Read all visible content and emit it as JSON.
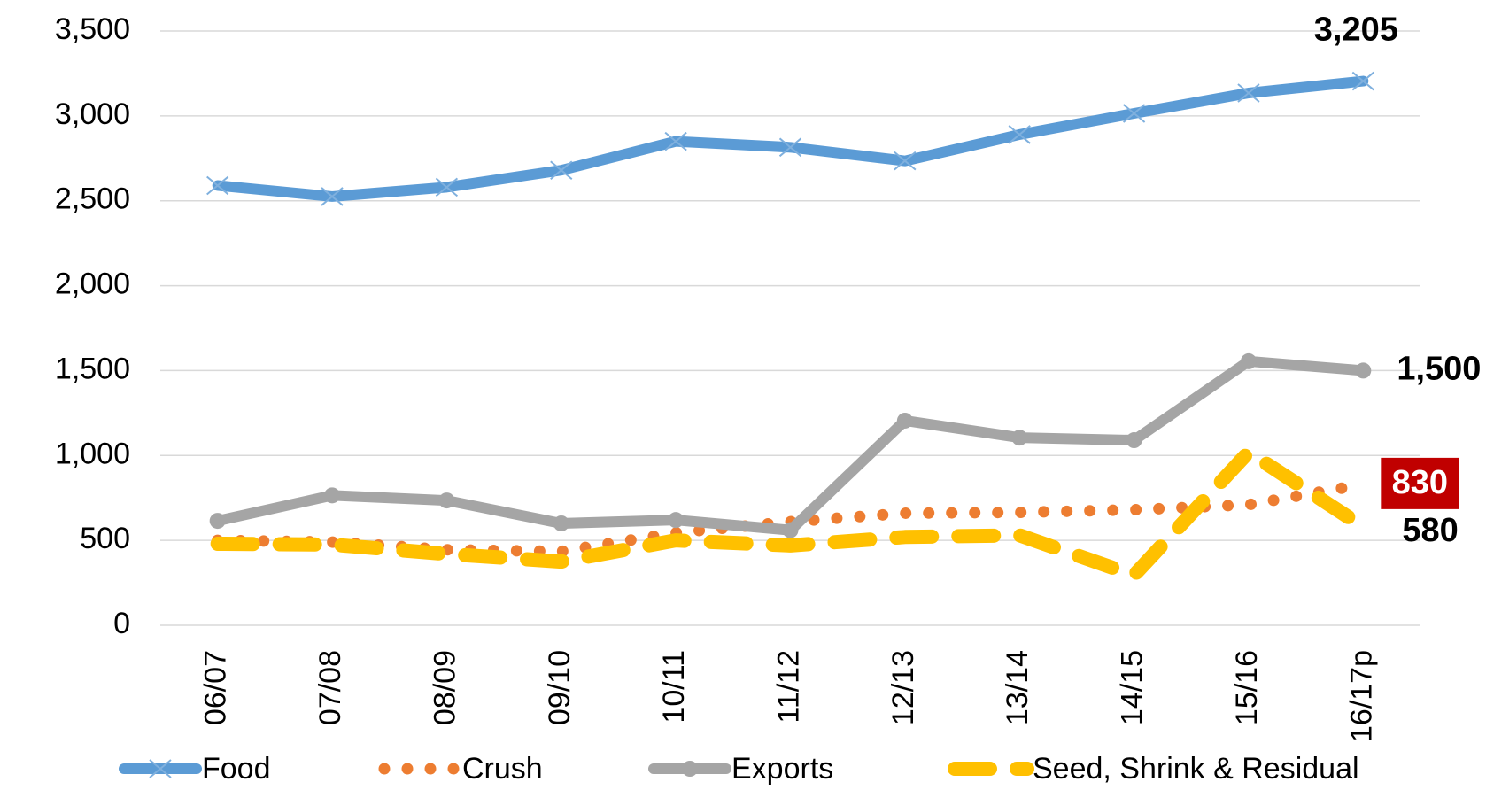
{
  "chart_data": {
    "type": "line",
    "categories": [
      "06/07",
      "07/08",
      "08/09",
      "09/10",
      "10/11",
      "11/12",
      "12/13",
      "13/14",
      "14/15",
      "15/16",
      "16/17p"
    ],
    "series": [
      {
        "name": "Food",
        "color": "#5b9bd5",
        "style": "solid",
        "marker": "x",
        "values": [
          2590,
          2525,
          2580,
          2680,
          2850,
          2815,
          2735,
          2890,
          3015,
          3135,
          3205
        ],
        "value_labels": [
          null,
          null,
          null,
          null,
          null,
          null,
          null,
          null,
          null,
          null,
          "3,205"
        ]
      },
      {
        "name": "Crush",
        "color": "#ed7d31",
        "style": "dotted",
        "marker": "none",
        "values": [
          500,
          490,
          445,
          435,
          545,
          610,
          660,
          665,
          680,
          710,
          830
        ],
        "value_labels": [
          null,
          null,
          null,
          null,
          null,
          null,
          null,
          null,
          null,
          null,
          "830"
        ]
      },
      {
        "name": "Exports",
        "color": "#a5a5a5",
        "style": "solid",
        "marker": "circle",
        "values": [
          615,
          765,
          735,
          600,
          620,
          560,
          1205,
          1105,
          1090,
          1555,
          1500
        ],
        "value_labels": [
          null,
          null,
          null,
          null,
          null,
          null,
          null,
          null,
          null,
          null,
          "1,500"
        ]
      },
      {
        "name": "Seed, Shrink & Residual",
        "color": "#ffc000",
        "style": "dashed",
        "marker": "none",
        "values": [
          480,
          475,
          420,
          375,
          500,
          470,
          520,
          530,
          295,
          1020,
          580
        ],
        "value_labels": [
          null,
          null,
          null,
          null,
          null,
          null,
          null,
          null,
          null,
          null,
          "580"
        ]
      }
    ],
    "ylim": [
      0,
      3500
    ],
    "yticks": [
      0,
      500,
      {
        "value": 1000,
        "label": "1,000"
      },
      {
        "value": 1500,
        "label": "1,500"
      },
      {
        "value": 2000,
        "label": "2,000"
      },
      {
        "value": 2500,
        "label": "2,500"
      },
      {
        "value": 3000,
        "label": "3,000"
      },
      {
        "value": 3500,
        "label": "3,500"
      }
    ],
    "grid": true,
    "legend": "bottom"
  }
}
